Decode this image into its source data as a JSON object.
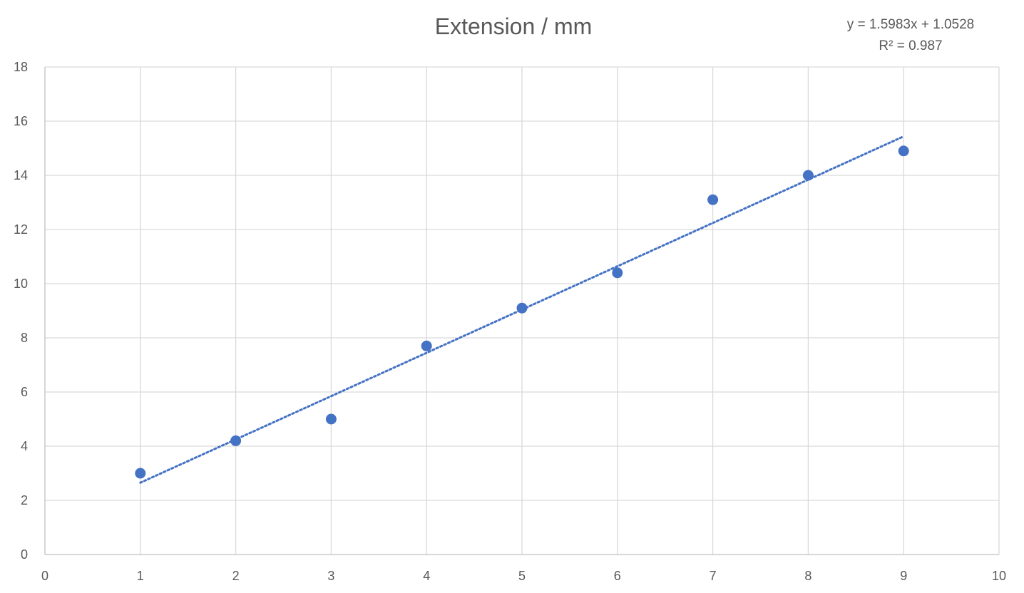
{
  "chart_data": {
    "type": "scatter",
    "title": "Extension / mm",
    "xlabel": "",
    "ylabel": "",
    "xlim": [
      0,
      10
    ],
    "ylim": [
      0,
      18
    ],
    "x_ticks": [
      0,
      1,
      2,
      3,
      4,
      5,
      6,
      7,
      8,
      9,
      10
    ],
    "y_ticks": [
      0,
      2,
      4,
      6,
      8,
      10,
      12,
      14,
      16,
      18
    ],
    "grid": true,
    "legend": "none",
    "series": [
      {
        "x": [
          1,
          2,
          3,
          4,
          5,
          6,
          7,
          8,
          9
        ],
        "y": [
          3.0,
          4.2,
          5.0,
          7.7,
          9.1,
          10.4,
          13.1,
          14.0,
          14.9
        ],
        "color": "#4472c4"
      }
    ],
    "trendline": {
      "type": "linear",
      "slope": 1.5983,
      "intercept": 1.0528,
      "x_range": [
        1,
        9
      ],
      "style": "dotted",
      "color": "#4472c4",
      "equation_label": "y = 1.5983x + 1.0528",
      "r2_label": "R² = 0.987"
    }
  }
}
